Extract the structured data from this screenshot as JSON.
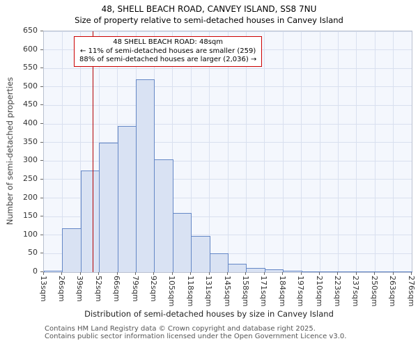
{
  "title": "48, SHELL BEACH ROAD, CANVEY ISLAND, SS8 7NU",
  "subtitle": "Size of property relative to semi-detached houses in Canvey Island",
  "annotation": {
    "line1": "48 SHELL BEACH ROAD: 48sqm",
    "line2": "← 11% of semi-detached houses are smaller (259)",
    "line3": "88% of semi-detached houses are larger (2,036) →"
  },
  "footer": {
    "line1": "Contains HM Land Registry data © Crown copyright and database right 2025.",
    "line2": "Contains public sector information licensed under the Open Government Licence v3.0."
  },
  "chart_data": {
    "type": "bar",
    "title": "48, SHELL BEACH ROAD, CANVEY ISLAND, SS8 7NU",
    "subtitle": "Size of property relative to semi-detached houses in Canvey Island",
    "xlabel": "Distribution of semi-detached houses by size in Canvey Island",
    "ylabel": "Number of semi-detached properties",
    "x_tick_labels": [
      "13sqm",
      "26sqm",
      "39sqm",
      "52sqm",
      "66sqm",
      "79sqm",
      "92sqm",
      "105sqm",
      "118sqm",
      "131sqm",
      "145sqm",
      "158sqm",
      "171sqm",
      "184sqm",
      "197sqm",
      "210sqm",
      "223sqm",
      "237sqm",
      "250sqm",
      "263sqm",
      "276sqm"
    ],
    "bin_edges_sqm": [
      13,
      26,
      39,
      52,
      66,
      79,
      92,
      105,
      118,
      131,
      145,
      158,
      171,
      184,
      197,
      210,
      223,
      237,
      250,
      263,
      276
    ],
    "values": [
      3,
      118,
      275,
      350,
      395,
      520,
      305,
      160,
      98,
      50,
      22,
      12,
      7,
      4,
      2,
      1,
      1,
      2,
      1,
      1
    ],
    "ylim": [
      0,
      650
    ],
    "y_ticks": [
      0,
      50,
      100,
      150,
      200,
      250,
      300,
      350,
      400,
      450,
      500,
      550,
      600,
      650
    ],
    "grid": true,
    "legend": false,
    "marker_value_sqm": 48,
    "marker_color": "#b30000",
    "bar_fill": "#d9e2f3",
    "bar_border": "#6487c6"
  }
}
